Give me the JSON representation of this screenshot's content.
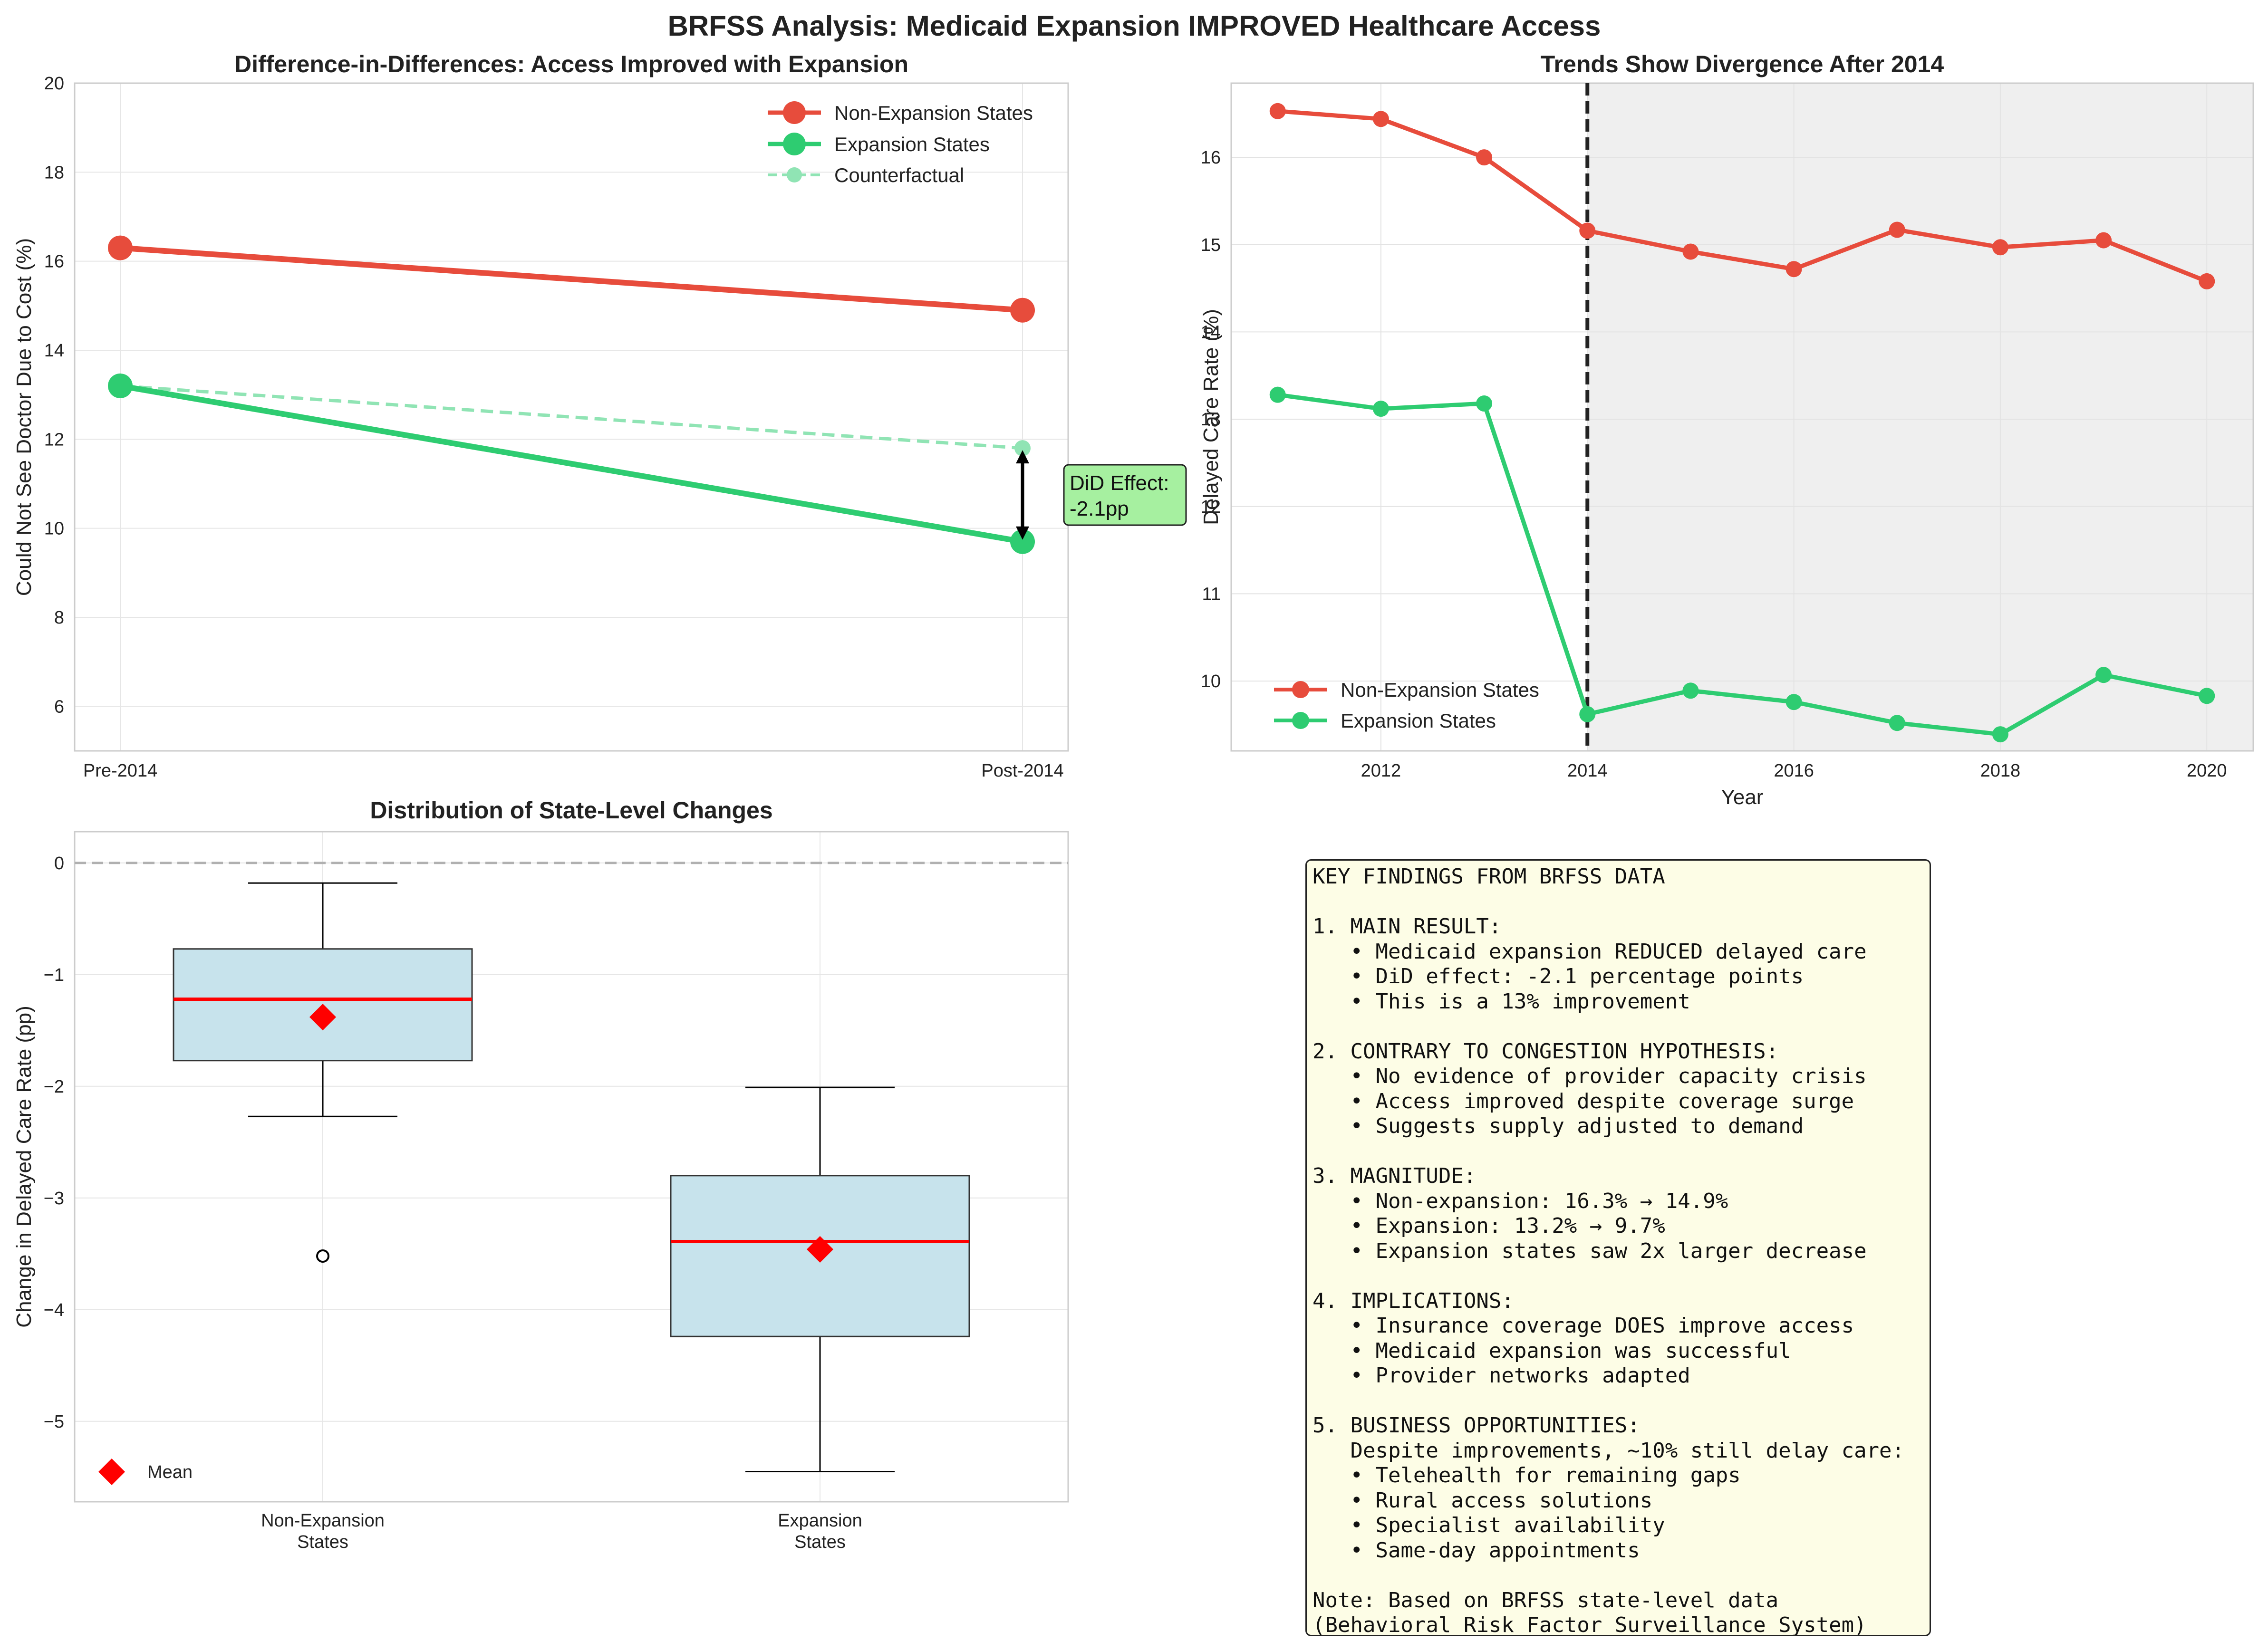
{
  "figure": {
    "title": "BRFSS Analysis: Medicaid Expansion IMPROVED Healthcare Access"
  },
  "colors": {
    "non_expansion": "#e74c3c",
    "expansion": "#2ecc71",
    "counterfactual": "#90e4b4",
    "box_fill": "#c7e3ec",
    "median": "#ff0000",
    "mean_marker": "#ff0000",
    "shade": "#efefef",
    "annotation_fill": "#a6f0a0",
    "note_fill": "#fdfde6"
  },
  "chart_data": [
    {
      "id": "did",
      "type": "line",
      "title": "Difference-in-Differences: Access Improved with Expansion",
      "xlabel": "",
      "ylabel": "Could Not See Doctor Due to Cost (%)",
      "categories": [
        "Pre-2014",
        "Post-2014"
      ],
      "ylim": [
        5,
        20
      ],
      "yticks": [
        6,
        8,
        10,
        12,
        14,
        16,
        18,
        20
      ],
      "grid": true,
      "legend": "top-right",
      "series": [
        {
          "name": "Non-Expansion States",
          "values": [
            16.3,
            14.9
          ]
        },
        {
          "name": "Expansion States",
          "values": [
            13.2,
            9.7
          ]
        },
        {
          "name": "Counterfactual",
          "values": [
            13.2,
            11.8
          ],
          "style": "dashed"
        }
      ],
      "annotation": {
        "text_line1": "DiD Effect:",
        "text_line2": "-2.1pp",
        "from": 11.8,
        "to": 9.7,
        "at": "Post-2014"
      }
    },
    {
      "id": "trends",
      "type": "line",
      "title": "Trends Show Divergence After 2014",
      "xlabel": "Year",
      "ylabel": "Delayed Care Rate (%)",
      "x": [
        2011,
        2012,
        2013,
        2014,
        2015,
        2016,
        2017,
        2018,
        2019,
        2020
      ],
      "xlim": [
        2010.55,
        2020.45
      ],
      "xticks": [
        2012,
        2014,
        2016,
        2018,
        2020
      ],
      "ylim": [
        9.2,
        16.85
      ],
      "yticks": [
        10,
        11,
        12,
        13,
        14,
        15,
        16
      ],
      "grid": true,
      "legend": "bottom-left",
      "policy_line": 2014,
      "shaded_from": 2014,
      "series": [
        {
          "name": "Non-Expansion States",
          "values": [
            16.53,
            16.44,
            16.0,
            15.16,
            14.92,
            14.72,
            15.17,
            14.97,
            15.05,
            14.58
          ]
        },
        {
          "name": "Expansion States",
          "values": [
            13.28,
            13.12,
            13.18,
            9.62,
            9.89,
            9.76,
            9.52,
            9.39,
            10.07,
            9.83
          ]
        }
      ]
    },
    {
      "id": "box",
      "type": "box",
      "title": "Distribution of State-Level Changes",
      "xlabel": "",
      "ylabel": "Change in Delayed Care Rate (pp)",
      "categories": [
        "Non-Expansion\nStates",
        "Expansion\nStates"
      ],
      "ylim": [
        -5.72,
        0.28
      ],
      "yticks": [
        0,
        -1,
        -2,
        -3,
        -4,
        -5
      ],
      "zero_line": 0,
      "grid": true,
      "legend": "bottom-left",
      "legend_label": "Mean",
      "boxes": [
        {
          "whisker_high": -0.18,
          "q3": -0.77,
          "median": -1.22,
          "q1": -1.77,
          "whisker_low": -2.27,
          "mean": -1.38,
          "outliers": [
            -3.52
          ]
        },
        {
          "whisker_high": -2.01,
          "q3": -2.8,
          "median": -3.39,
          "q1": -4.24,
          "whisker_low": -5.45,
          "mean": -3.46,
          "outliers": []
        }
      ]
    }
  ],
  "findings": {
    "title": "KEY FINDINGS FROM BRFSS DATA",
    "lines": [
      "",
      "1. MAIN RESULT:",
      "   • Medicaid expansion REDUCED delayed care",
      "   • DiD effect: -2.1 percentage points",
      "   • This is a 13% improvement",
      "",
      "2. CONTRARY TO CONGESTION HYPOTHESIS:",
      "   • No evidence of provider capacity crisis",
      "   • Access improved despite coverage surge",
      "   • Suggests supply adjusted to demand",
      "",
      "3. MAGNITUDE:",
      "   • Non-expansion: 16.3% → 14.9%",
      "   • Expansion: 13.2% → 9.7%",
      "   • Expansion states saw 2x larger decrease",
      "",
      "4. IMPLICATIONS:",
      "   • Insurance coverage DOES improve access",
      "   • Medicaid expansion was successful",
      "   • Provider networks adapted",
      "",
      "5. BUSINESS OPPORTUNITIES:",
      "   Despite improvements, ~10% still delay care:",
      "   • Telehealth for remaining gaps",
      "   • Rural access solutions",
      "   • Specialist availability",
      "   • Same-day appointments",
      "",
      "Note: Based on BRFSS state-level data",
      "(Behavioral Risk Factor Surveillance System)"
    ]
  }
}
